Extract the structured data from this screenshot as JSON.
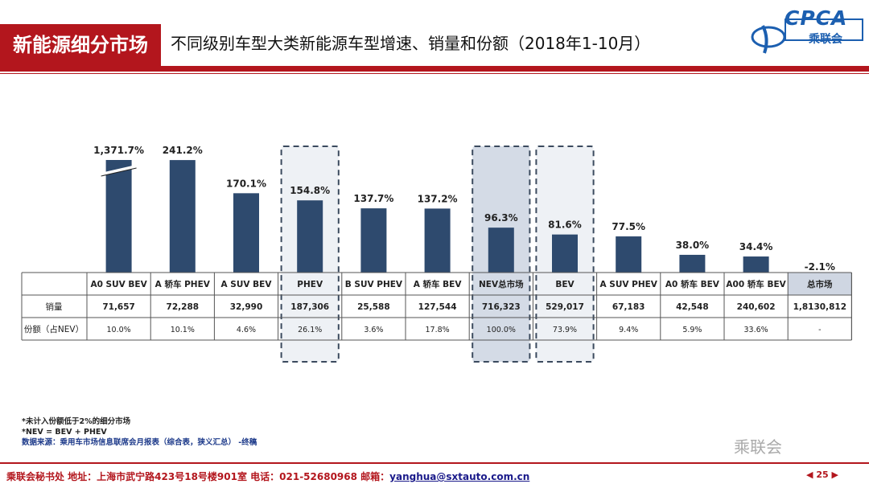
{
  "header": {
    "section_tag": "新能源细分市场",
    "title": "不同级别车型大类新能源车型增速、销量和份额（2018年1-10月）",
    "logo_text": "CPCA",
    "logo_sub": "乘联会"
  },
  "chart_data": {
    "type": "bar",
    "categories": [
      "A0 SUV BEV",
      "A 轿车 PHEV",
      "A SUV BEV",
      "PHEV",
      "B SUV PHEV",
      "A 轿车 BEV",
      "NEV总市场",
      "BEV",
      "A SUV PHEV",
      "A0 轿车 BEV",
      "A00 轿车 BEV",
      "总市场"
    ],
    "series": [
      {
        "values": [
          1371.7,
          241.2,
          170.1,
          154.8,
          137.7,
          137.2,
          96.3,
          81.6,
          77.5,
          38.0,
          34.4,
          -2.1
        ],
        "labels": [
          "1,371.7%",
          "241.2%",
          "170.1%",
          "154.8%",
          "137.7%",
          "137.2%",
          "96.3%",
          "81.6%",
          "77.5%",
          "38.0%",
          "34.4%",
          "-2.1%"
        ]
      }
    ],
    "axis_break": "1,371.7% bar truncated",
    "highlighted": [
      "PHEV",
      "NEV总市场",
      "BEV"
    ],
    "colors": {
      "bar": "#2e4a6e",
      "highlight_fill": "#eef1f5",
      "nev_fill": "#d4dbe6",
      "total_cell": "#cfd6e2"
    },
    "table": {
      "row_labels": [
        "销量",
        "份额（占NEV）"
      ],
      "sales": [
        "71,657",
        "72,288",
        "32,990",
        "187,306",
        "25,588",
        "127,544",
        "716,323",
        "529,017",
        "67,183",
        "42,548",
        "240,602",
        "1,8130,812"
      ],
      "share": [
        "10.0%",
        "10.1%",
        "4.6%",
        "26.1%",
        "3.6%",
        "17.8%",
        "100.0%",
        "73.9%",
        "9.4%",
        "5.9%",
        "33.6%",
        "-"
      ]
    }
  },
  "notes": {
    "line1": "*未计入份额低于2%的细分市场",
    "line2": "*NEV = BEV + PHEV",
    "line3": "数据来源：乘用车市场信息联席会月报表（综合表，狭义汇总） -终稿"
  },
  "watermark": "乘联会",
  "footer": {
    "text": "乘联会秘书处   地址：上海市武宁路423号18号楼901室  电话：021-52680968   邮箱：",
    "email": "yanghua@sxtauto.com.cn",
    "page": "25"
  }
}
